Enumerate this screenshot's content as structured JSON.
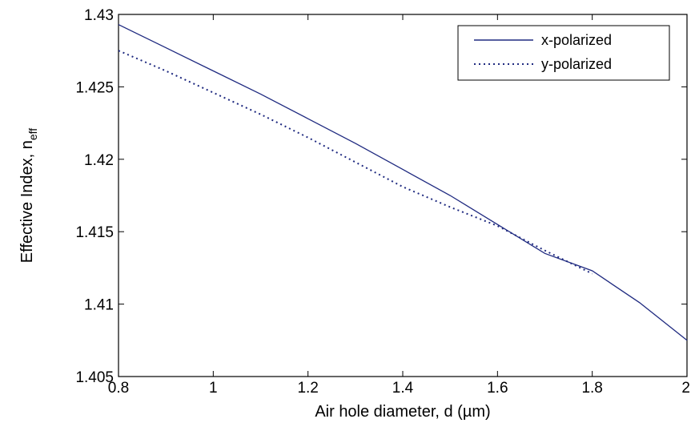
{
  "chart_data": {
    "type": "line",
    "xlabel": "Air hole diameter, d (µm)",
    "ylabel": "Effective Index, n",
    "ylabel_sub": "eff",
    "xlim": [
      0.8,
      2.0
    ],
    "ylim": [
      1.405,
      1.43
    ],
    "xticks": [
      "0.8",
      "1",
      "1.2",
      "1.4",
      "1.6",
      "1.8",
      "2"
    ],
    "xtick_values": [
      0.8,
      1.0,
      1.2,
      1.4,
      1.6,
      1.8,
      2.0
    ],
    "yticks": [
      "1.405",
      "1.41",
      "1.415",
      "1.42",
      "1.425",
      "1.43"
    ],
    "ytick_values": [
      1.405,
      1.41,
      1.415,
      1.42,
      1.425,
      1.43
    ],
    "grid": false,
    "legend_position": "top-right",
    "series": [
      {
        "name": "x-polarized",
        "style": "solid",
        "color": "#1f2a80",
        "x": [
          0.8,
          0.9,
          1.0,
          1.1,
          1.2,
          1.3,
          1.4,
          1.5,
          1.6,
          1.7,
          1.8,
          1.9,
          2.0
        ],
        "y": [
          1.4293,
          1.4277,
          1.4261,
          1.4245,
          1.4228,
          1.4211,
          1.4193,
          1.4175,
          1.4155,
          1.4135,
          1.4123,
          1.4101,
          1.4075
        ]
      },
      {
        "name": "y-polarized",
        "style": "dotted",
        "color": "#1f2a80",
        "x": [
          0.8,
          0.9,
          1.0,
          1.1,
          1.2,
          1.3,
          1.4,
          1.5,
          1.6,
          1.7,
          1.8
        ],
        "y": [
          1.4275,
          1.4261,
          1.4246,
          1.4231,
          1.4215,
          1.4198,
          1.4181,
          1.4167,
          1.4154,
          1.4137,
          1.4121
        ]
      }
    ]
  }
}
